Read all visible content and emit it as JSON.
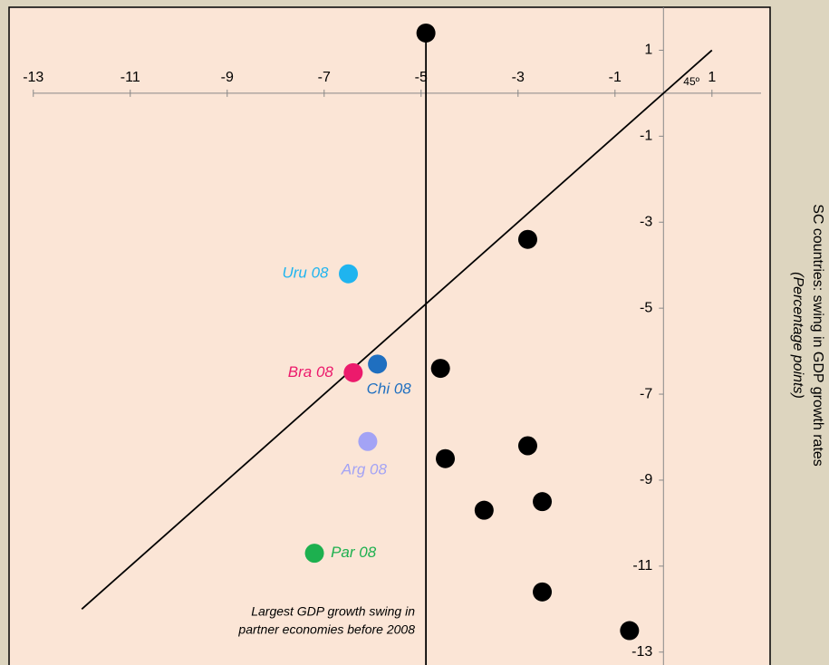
{
  "chart_data": {
    "type": "scatter",
    "x": [
      -4.9,
      -2.8,
      -6.5,
      -6.4,
      -5.9,
      -4.6,
      -6.1,
      -2.8,
      -4.5,
      -2.5,
      -3.7,
      -7.2,
      -2.5,
      -0.7
    ],
    "y": [
      1.4,
      -3.4,
      -4.2,
      -6.5,
      -6.3,
      -6.4,
      -8.1,
      -8.2,
      -8.5,
      -9.5,
      -9.7,
      -10.7,
      -11.6,
      -12.5
    ],
    "colors": [
      "#000000",
      "#000000",
      "#1fb4ef",
      "#ec1a6c",
      "#1f6fc0",
      "#000000",
      "#a3a3f5",
      "#000000",
      "#000000",
      "#000000",
      "#000000",
      "#1db04f",
      "#000000",
      "#000000"
    ],
    "point_labels": [
      null,
      null,
      "Uru 08",
      "Bra 08",
      "Chi 08",
      null,
      "Arg 08",
      null,
      null,
      null,
      null,
      "Par 08",
      null,
      null
    ],
    "label_positions": [
      null,
      null,
      "left",
      "left",
      "below-right",
      null,
      "below-left",
      null,
      null,
      null,
      null,
      "right",
      null,
      null
    ],
    "lines": [
      {
        "x": [
          -12,
          1
        ],
        "y": [
          -12,
          1
        ]
      },
      {
        "x": [
          -4.9,
          -4.9
        ],
        "y": [
          1.4,
          -13.3
        ]
      }
    ],
    "xlim": [
      -13.5,
      2.2
    ],
    "ylim": [
      -13.3,
      2.0
    ],
    "xticks": [
      -13,
      -11,
      -9,
      -7,
      -5,
      -3,
      -1,
      1
    ],
    "yticks": [
      1,
      -1,
      -3,
      -5,
      -7,
      -9,
      -11,
      -13
    ],
    "y_label": "SC countries: swing in GDP growth rates",
    "y_label_note": "(Percentage points)",
    "annotations": [
      "45º",
      "Largest  GDP growth swing in",
      "partner economies before 2008"
    ]
  }
}
